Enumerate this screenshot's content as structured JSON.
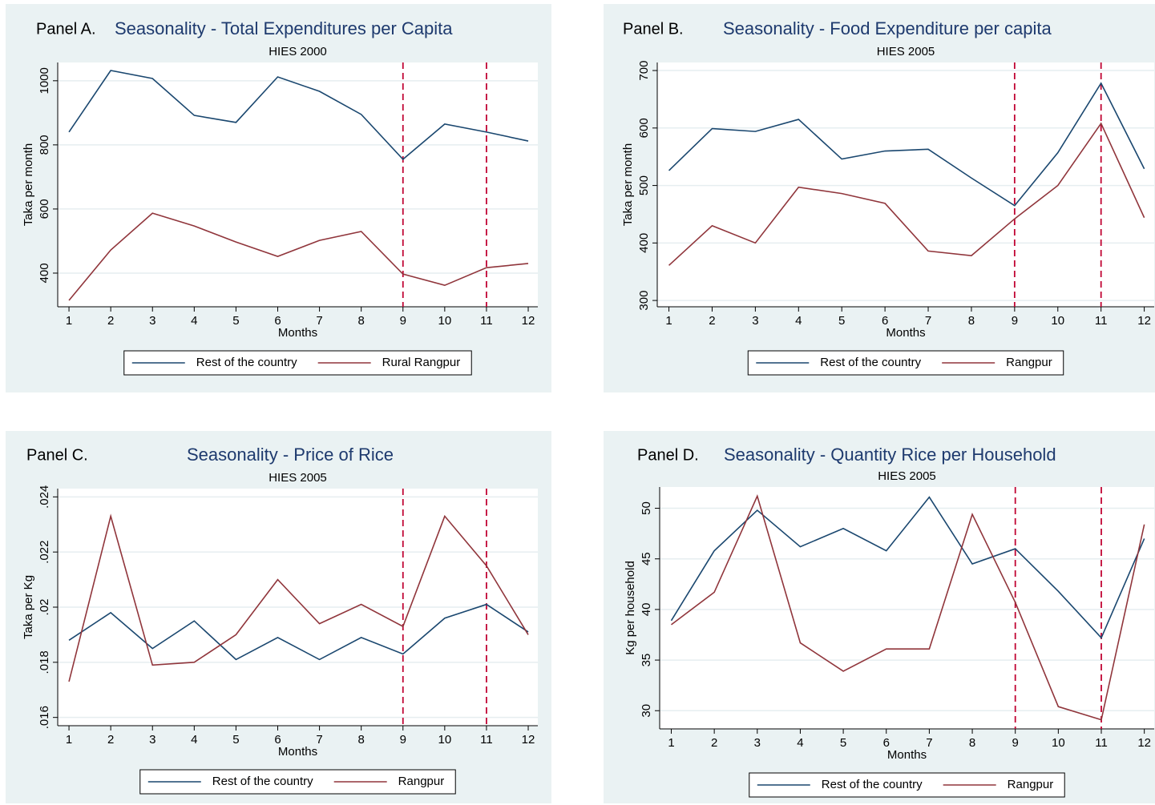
{
  "chart_data": [
    {
      "type": "line",
      "panel": "Panel A.",
      "title": "Seasonality - Total Expenditures per Capita",
      "subtitle": "HIES 2000",
      "xlabel": "Months",
      "ylabel": "Taka per month",
      "x": [
        1,
        2,
        3,
        4,
        5,
        6,
        7,
        8,
        9,
        10,
        11,
        12
      ],
      "xlim": [
        0.73,
        12.23
      ],
      "xticks": [
        1,
        2,
        3,
        4,
        5,
        6,
        7,
        8,
        9,
        10,
        11,
        12
      ],
      "ylim": [
        295,
        1057
      ],
      "yticks": [
        400,
        600,
        800,
        1000
      ],
      "grid": true,
      "vlines": [
        9,
        11
      ],
      "vline_color": "#c10534",
      "series": [
        {
          "name": "Rest of the country",
          "color": "#1a476f",
          "values": [
            840,
            1032,
            1007,
            892,
            870,
            1012,
            967,
            895,
            755,
            865,
            840,
            812
          ]
        },
        {
          "name": "Rural Rangpur",
          "color": "#90353b",
          "values": [
            315,
            472,
            587,
            547,
            497,
            452,
            502,
            530,
            397,
            362,
            417,
            430
          ]
        }
      ]
    },
    {
      "type": "line",
      "panel": "Panel B.",
      "title": "Seasonality - Food Expenditure per capita",
      "subtitle": "HIES 2005",
      "xlabel": "Months",
      "ylabel": "Taka per month",
      "x": [
        1,
        2,
        3,
        4,
        5,
        6,
        7,
        8,
        9,
        10,
        11,
        12
      ],
      "xlim": [
        0.73,
        12.23
      ],
      "xticks": [
        1,
        2,
        3,
        4,
        5,
        6,
        7,
        8,
        9,
        10,
        11,
        12
      ],
      "ylim": [
        289,
        714
      ],
      "yticks": [
        300,
        400,
        500,
        600,
        700
      ],
      "grid": true,
      "vlines": [
        9,
        11
      ],
      "vline_color": "#c10534",
      "series": [
        {
          "name": "Rest of the country",
          "color": "#1a476f",
          "values": [
            526,
            599,
            594,
            615,
            546,
            560,
            563,
            513,
            465,
            557,
            678,
            529
          ]
        },
        {
          "name": "Rangpur",
          "color": "#90353b",
          "values": [
            361,
            430,
            400,
            497,
            486,
            469,
            386,
            378,
            442,
            500,
            608,
            444
          ]
        }
      ]
    },
    {
      "type": "line",
      "panel": "Panel C.",
      "title": "Seasonality - Price of Rice",
      "subtitle": "HIES 2005",
      "xlabel": "Months",
      "ylabel": "Taka per Kg",
      "x": [
        1,
        2,
        3,
        4,
        5,
        6,
        7,
        8,
        9,
        10,
        11,
        12
      ],
      "xlim": [
        0.73,
        12.23
      ],
      "xticks": [
        1,
        2,
        3,
        4,
        5,
        6,
        7,
        8,
        9,
        10,
        11,
        12
      ],
      "ylim": [
        0.0157,
        0.0243
      ],
      "yticks": [
        {
          "value": 0.016,
          "label": ".016"
        },
        {
          "value": 0.018,
          "label": ".018"
        },
        {
          "value": 0.02,
          "label": ".02"
        },
        {
          "value": 0.022,
          "label": ".022"
        },
        {
          "value": 0.024,
          "label": ".024"
        }
      ],
      "grid": true,
      "vlines": [
        9,
        11
      ],
      "vline_color": "#c10534",
      "series": [
        {
          "name": "Rest of the country",
          "color": "#1a476f",
          "values": [
            0.0188,
            0.0198,
            0.0185,
            0.0195,
            0.0181,
            0.0189,
            0.0181,
            0.0189,
            0.0183,
            0.0196,
            0.0201,
            0.0191
          ]
        },
        {
          "name": "Rangpur",
          "color": "#90353b",
          "values": [
            0.0173,
            0.0233,
            0.0179,
            0.018,
            0.019,
            0.021,
            0.0194,
            0.0201,
            0.0193,
            0.0233,
            0.0215,
            0.019
          ]
        }
      ]
    },
    {
      "type": "line",
      "panel": "Panel D.",
      "title": "Seasonality - Quantity Rice per Household",
      "subtitle": "HIES 2005",
      "xlabel": "Months",
      "ylabel": "Kg per household",
      "x": [
        1,
        2,
        3,
        4,
        5,
        6,
        7,
        8,
        9,
        10,
        11,
        12
      ],
      "xlim": [
        0.73,
        12.23
      ],
      "xticks": [
        1,
        2,
        3,
        4,
        5,
        6,
        7,
        8,
        9,
        10,
        11,
        12
      ],
      "ylim": [
        28.2,
        52.1
      ],
      "yticks": [
        30,
        35,
        40,
        45,
        50
      ],
      "grid": true,
      "vlines": [
        9,
        11
      ],
      "vline_color": "#c10534",
      "series": [
        {
          "name": "Rest of the country",
          "color": "#1a476f",
          "values": [
            38.9,
            45.8,
            49.8,
            46.2,
            48.0,
            45.8,
            51.1,
            44.5,
            46.0,
            41.8,
            37.2,
            47.0
          ]
        },
        {
          "name": "Rangpur",
          "color": "#90353b",
          "values": [
            38.5,
            41.7,
            51.2,
            36.7,
            33.9,
            36.1,
            36.1,
            49.4,
            40.7,
            30.4,
            29.1,
            48.4
          ]
        }
      ]
    }
  ]
}
